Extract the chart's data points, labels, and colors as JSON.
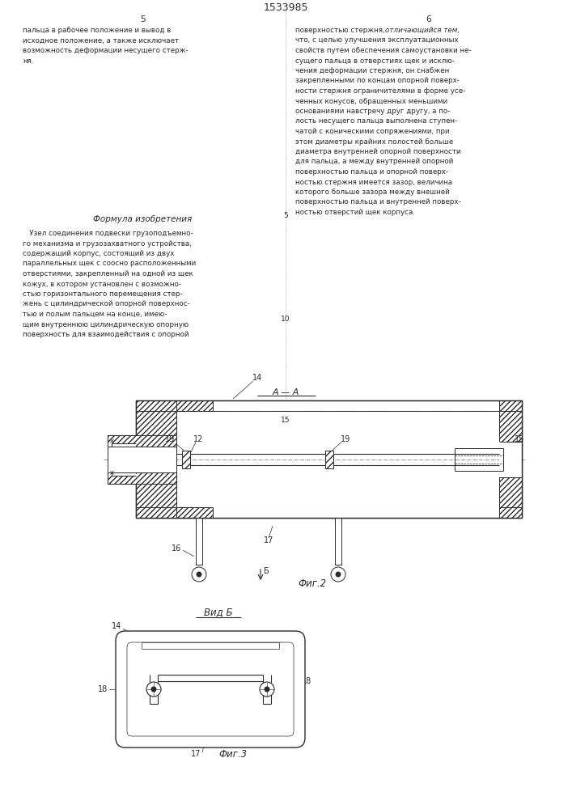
{
  "title": "1533985",
  "fig2_label": "А — А",
  "fig2_caption": "Фиг.2",
  "fig3_caption": "Фиг.3",
  "view_label": "Вид Б",
  "bg_color": "#ffffff",
  "line_color": "#2a2a2a",
  "text_color": "#2a2a2a",
  "page_number_left": "5",
  "page_number_right": "6",
  "col1_text": [
    "пальца в рабочее положение и вывод в",
    "исходное положение, а также исключает",
    "возможность деформации несущего стерж-",
    "ня."
  ],
  "col2_text_normal": [
    [
      "поверхностью стержня, ",
      false
    ],
    [
      "отличающийся тем,",
      true
    ],
    [
      "что, с целью улучшения эксплуатационных",
      false
    ],
    [
      "свойств путем обеспечения самоустановки не-",
      false
    ],
    [
      "сущего пальца в отверстиях щек и исклю-",
      false
    ],
    [
      "чения деформации стержня, он снабжен",
      false
    ],
    [
      "закрепленными по концам опорной поверх-",
      false
    ],
    [
      "ности стержня ограничителями в форме усе-",
      false
    ],
    [
      "ченных конусов, обращенных меньшими",
      false
    ],
    [
      "основаниями навстречу друг другу, а по-",
      false
    ],
    [
      "лость несущего пальца выполнена ступен-",
      false
    ],
    [
      "чатой с коническими сопряжениями, при",
      false
    ],
    [
      "этом диаметры крайних полостей больше",
      false
    ],
    [
      "диаметра внутренней опорной поверхности",
      false
    ],
    [
      "для пальца, а между внутренней опорной",
      false
    ],
    [
      "поверхностью пальца и опорной поверх-",
      false
    ],
    [
      "ностью стержня имеется зазор, величина",
      false
    ],
    [
      "которого больше зазора между внешней",
      false
    ],
    [
      "поверхностью пальца и внутренней поверх-",
      false
    ],
    [
      "ностью отверстий щек корпуса.",
      false
    ]
  ],
  "formula_title": "Формула изобретения",
  "formula_text": [
    "   Узел соединения подвески грузоподъемно-",
    "го механизма и грузозахватного устройства,",
    "содержащий корпус, состоящий из двух",
    "параллельных щек с соосно расположенными",
    "отверстиями, закрепленный на одной из щек",
    "кожух, в котором установлен с возможно-",
    "стью горизонтального перемещения стер-",
    "жень с цилиндрической опорной поверхнос-",
    "тью и полым пальцем на конце, имею-",
    "щим внутреннюю цилиндрическую опорную",
    "поверхность для взаимодействия с опорной"
  ],
  "line_nums_left": [
    [
      "5",
      470
    ],
    [
      "10",
      350
    ],
    [
      "15",
      230
    ]
  ],
  "line_nums_right": [
    [
      "5",
      470
    ]
  ]
}
